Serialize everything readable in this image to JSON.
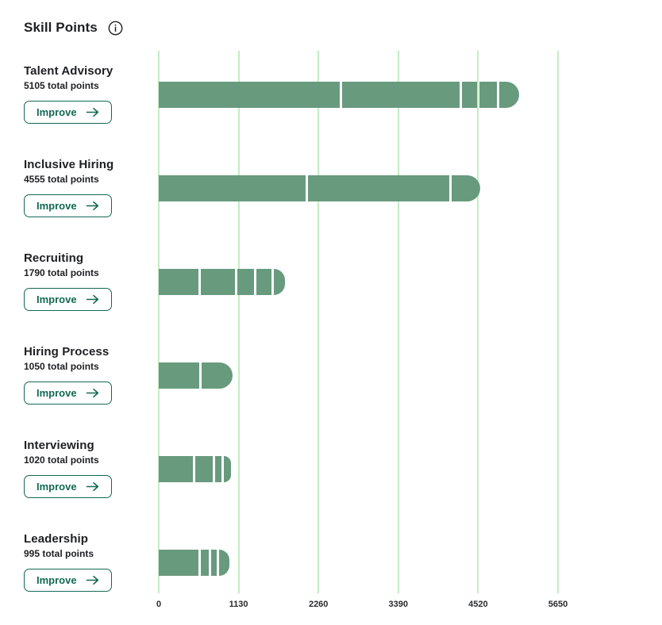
{
  "header": {
    "title": "Skill Points"
  },
  "ui": {
    "improve_label": "Improve"
  },
  "colors": {
    "bar": "#689A7E",
    "gridline": "#C2EEC3",
    "accent": "#126954",
    "text": "#1E1F22"
  },
  "chart_data": {
    "type": "bar",
    "orientation": "horizontal",
    "title": "Skill Points",
    "xlabel": "",
    "ylabel": "",
    "xlim": [
      0,
      5650
    ],
    "ticks": [
      0,
      1130,
      2260,
      3390,
      4520,
      5650
    ],
    "grid": "vertical",
    "rows": [
      {
        "label": "Talent Advisory",
        "total": 5105,
        "subtitle": "5105 total points",
        "segments": [
          2600,
          1695,
          245,
          275,
          290
        ]
      },
      {
        "label": "Inclusive Hiring",
        "total": 4555,
        "subtitle": "4555 total points",
        "segments": [
          2115,
          2025,
          415
        ]
      },
      {
        "label": "Recruiting",
        "total": 1790,
        "subtitle": "1790 total points",
        "segments": [
          600,
          510,
          270,
          250,
          160
        ]
      },
      {
        "label": "Hiring Process",
        "total": 1050,
        "subtitle": "1050 total points",
        "segments": [
          610,
          440
        ]
      },
      {
        "label": "Interviewing",
        "total": 1020,
        "subtitle": "1020 total points",
        "segments": [
          515,
          285,
          125,
          95
        ]
      },
      {
        "label": "Leadership",
        "total": 995,
        "subtitle": "995 total points",
        "segments": [
          600,
          140,
          115,
          140
        ]
      }
    ]
  }
}
